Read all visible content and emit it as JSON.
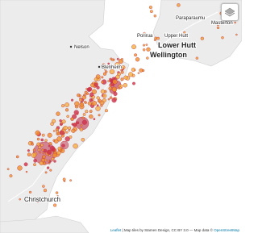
{
  "labels": [
    "Nelson",
    "Paraparaumu",
    "Masterton",
    "Porirua",
    "Upper Hutt",
    "Lower Hutt",
    "Wellington",
    "Blenheim",
    "Christchurch"
  ],
  "attribution": {
    "leaflet": "Leaflet",
    "text": "| Map tiles by Stamen Design, CC BY 3.0 — Map data ©",
    "osm": "OpenStreetMap"
  }
}
